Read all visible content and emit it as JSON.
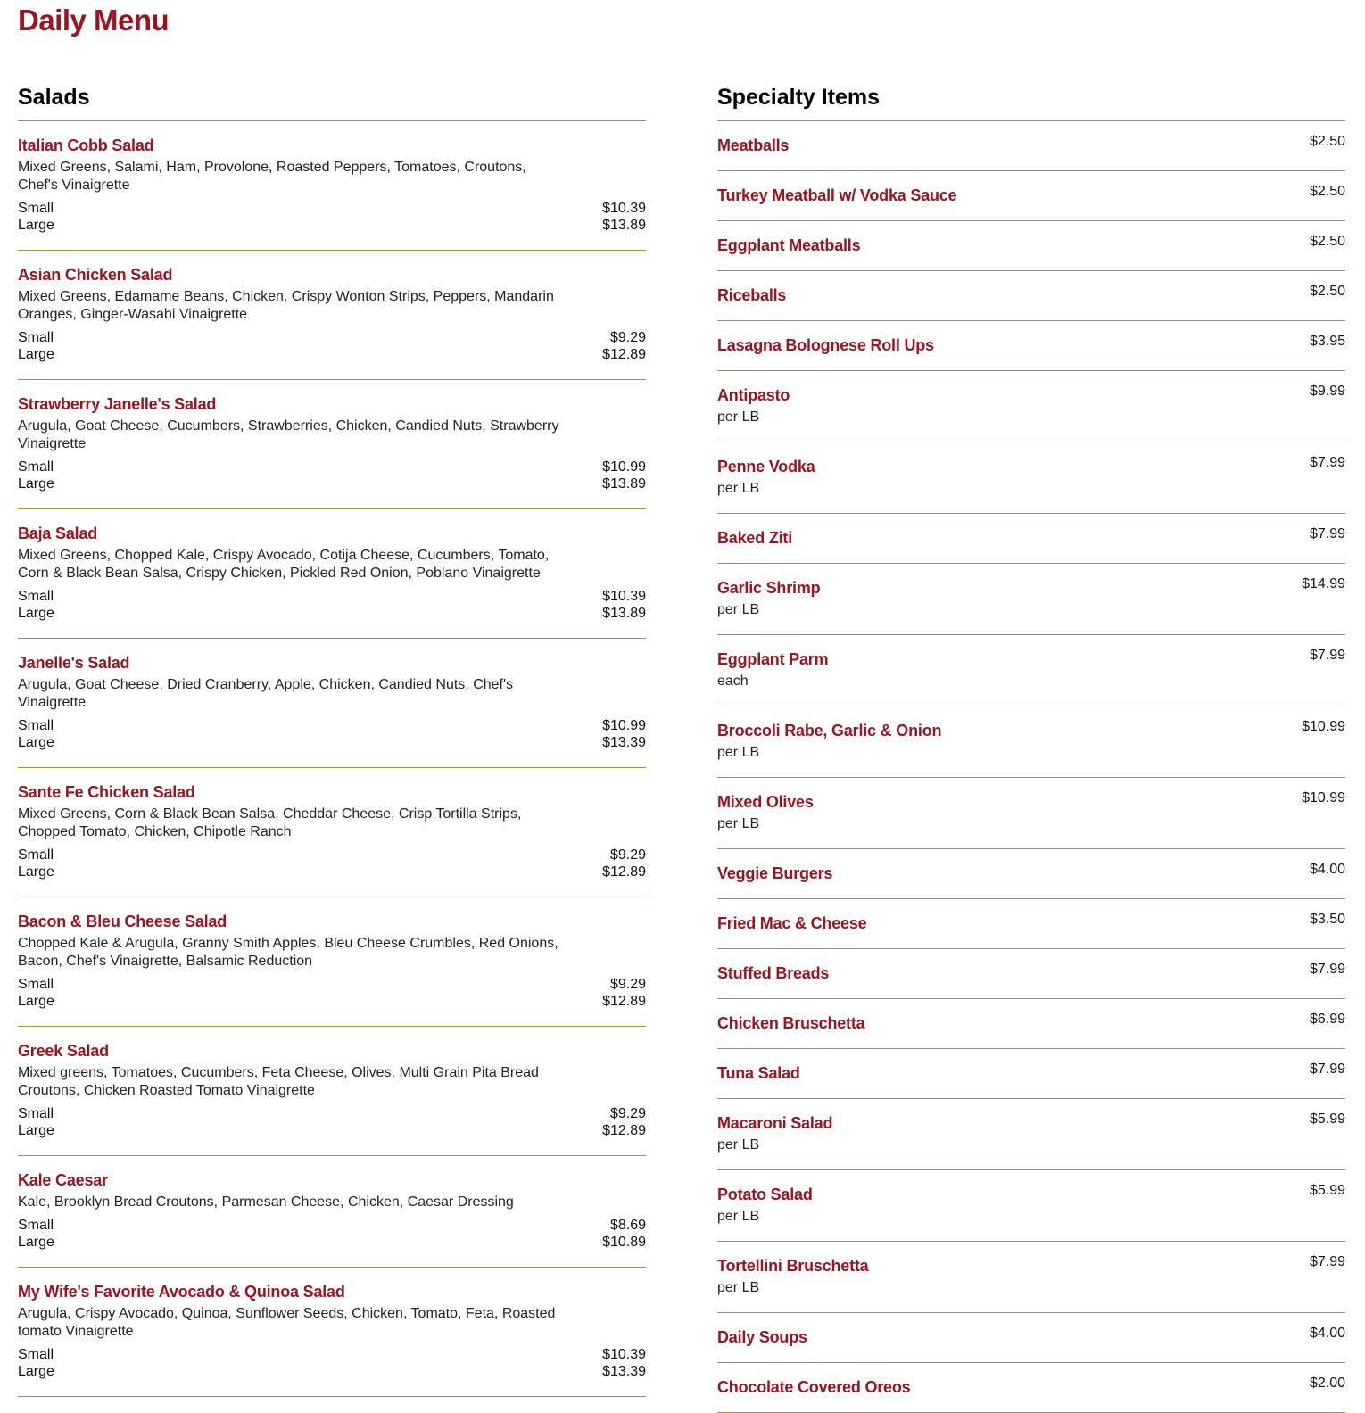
{
  "title": "Daily Menu",
  "salads": {
    "heading": "Salads",
    "items": [
      {
        "name": "Italian Cobb Salad",
        "desc": "Mixed Greens, Salami, Ham, Provolone, Roasted Peppers, Tomatoes, Croutons, Chef's Vinaigrette",
        "small": "$10.39",
        "large": "$13.89"
      },
      {
        "name": "Asian Chicken Salad",
        "desc": "Mixed Greens, Edamame Beans, Chicken. Crispy Wonton Strips, Peppers, Mandarin Oranges, Ginger-Wasabi Vinaigrette",
        "small": "$9.29",
        "large": "$12.89"
      },
      {
        "name": "Strawberry Janelle's Salad",
        "desc": "Arugula, Goat Cheese, Cucumbers, Strawberries, Chicken, Candied Nuts, Strawberry Vinaigrette",
        "small": "$10.99",
        "large": "$13.89"
      },
      {
        "name": "Baja Salad",
        "desc": "Mixed Greens, Chopped Kale, Crispy Avocado, Cotija Cheese, Cucumbers, Tomato, Corn & Black Bean Salsa, Crispy Chicken, Pickled Red Onion, Poblano Vinaigrette",
        "small": "$10.39",
        "large": "$13.89"
      },
      {
        "name": "Janelle's Salad",
        "desc": "Arugula, Goat Cheese, Dried Cranberry, Apple, Chicken, Candied Nuts, Chef's Vinaigrette",
        "small": "$10.99",
        "large": "$13.39"
      },
      {
        "name": "Sante Fe Chicken Salad",
        "desc": "Mixed Greens, Corn & Black Bean Salsa, Cheddar Cheese, Crisp Tortilla Strips, Chopped Tomato, Chicken, Chipotle Ranch",
        "small": "$9.29",
        "large": "$12.89"
      },
      {
        "name": "Bacon & Bleu Cheese Salad",
        "desc": "Chopped Kale & Arugula, Granny Smith Apples, Bleu Cheese Crumbles, Red Onions, Bacon, Chef's Vinaigrette, Balsamic Reduction",
        "small": "$9.29",
        "large": "$12.89"
      },
      {
        "name": "Greek Salad",
        "desc": "Mixed greens, Tomatoes, Cucumbers, Feta Cheese, Olives, Multi Grain Pita Bread Croutons, Chicken Roasted Tomato Vinaigrette",
        "small": "$9.29",
        "large": "$12.89"
      },
      {
        "name": "Kale Caesar",
        "desc": "Kale, Brooklyn Bread Croutons, Parmesan Cheese, Chicken, Caesar Dressing",
        "small": "$8.69",
        "large": "$10.89"
      },
      {
        "name": "My Wife's Favorite Avocado & Quinoa Salad",
        "desc": "Arugula, Crispy Avocado, Quinoa, Sunflower Seeds, Chicken, Tomato, Feta, Roasted tomato Vinaigrette",
        "small": "$10.39",
        "large": "$13.39"
      }
    ],
    "small_label": "Small",
    "large_label": "Large"
  },
  "specialty": {
    "heading": "Specialty Items",
    "items": [
      {
        "name": "Meatballs",
        "price": "$2.50"
      },
      {
        "name": "Turkey Meatball w/ Vodka Sauce",
        "price": "$2.50"
      },
      {
        "name": "Eggplant Meatballs",
        "price": "$2.50"
      },
      {
        "name": "Riceballs",
        "price": "$2.50"
      },
      {
        "name": "Lasagna Bolognese Roll Ups",
        "price": "$3.95"
      },
      {
        "name": "Antipasto",
        "price": "$9.99",
        "sub": "per LB"
      },
      {
        "name": "Penne Vodka",
        "price": "$7.99",
        "sub": "per LB"
      },
      {
        "name": "Baked Ziti",
        "price": "$7.99"
      },
      {
        "name": "Garlic Shrimp",
        "price": "$14.99",
        "sub": "per LB"
      },
      {
        "name": "Eggplant Parm",
        "price": "$7.99",
        "sub": "each"
      },
      {
        "name": "Broccoli Rabe, Garlic & Onion",
        "price": "$10.99",
        "sub": "per LB"
      },
      {
        "name": "Mixed Olives",
        "price": "$10.99",
        "sub": "per LB"
      },
      {
        "name": "Veggie Burgers",
        "price": "$4.00"
      },
      {
        "name": "Fried Mac & Cheese",
        "price": "$3.50"
      },
      {
        "name": "Stuffed Breads",
        "price": "$7.99"
      },
      {
        "name": "Chicken Bruschetta",
        "price": "$6.99"
      },
      {
        "name": "Tuna Salad",
        "price": "$7.99"
      },
      {
        "name": "Macaroni Salad",
        "price": "$5.99",
        "sub": "per LB"
      },
      {
        "name": "Potato Salad",
        "price": "$5.99",
        "sub": "per LB"
      },
      {
        "name": "Tortellini Bruschetta",
        "price": "$7.99",
        "sub": "per LB"
      },
      {
        "name": "Daily Soups",
        "price": "$4.00"
      },
      {
        "name": "Chocolate Covered Oreos",
        "price": "$2.00"
      }
    ]
  },
  "colors": {
    "accent": "#9b1422",
    "divider": "#a8913a"
  }
}
